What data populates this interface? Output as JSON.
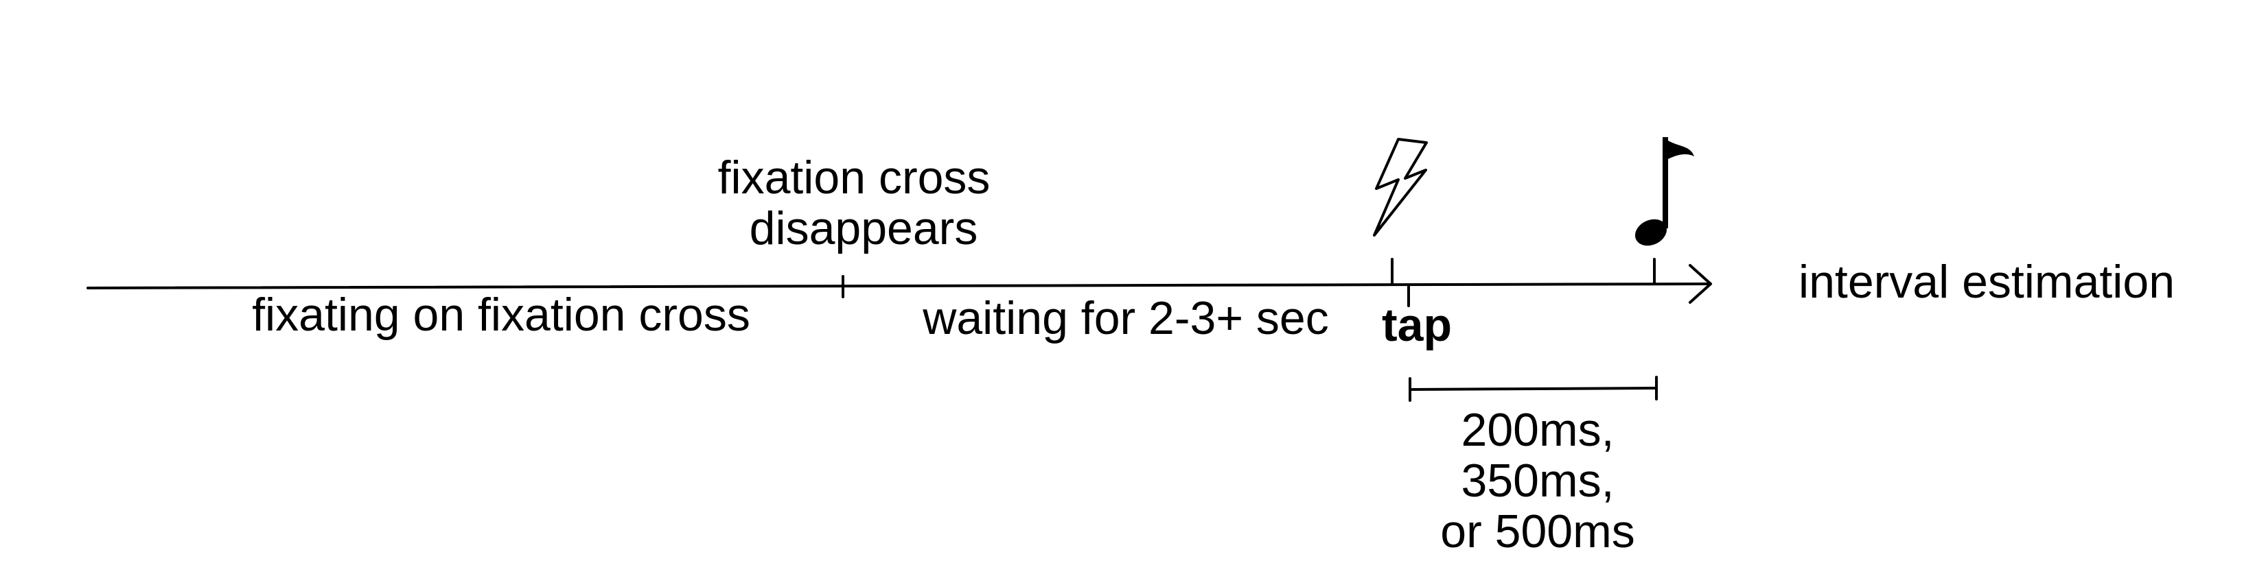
{
  "diagram": {
    "timeline": {
      "phases": {
        "fixating": "fixating on fixation cross",
        "waiting": "waiting for 2-3+ sec"
      },
      "events": {
        "cross_disappears_line1": "fixation cross",
        "cross_disappears_line2": "disappears",
        "tap": "tap"
      },
      "end_label": "interval estimation"
    },
    "interval": {
      "options_line1": "200ms,",
      "options_line2": "350ms,",
      "options_line3": "or 500ms"
    },
    "icons": {
      "flash": "lightning-bolt-icon",
      "tone": "music-note-icon"
    }
  }
}
